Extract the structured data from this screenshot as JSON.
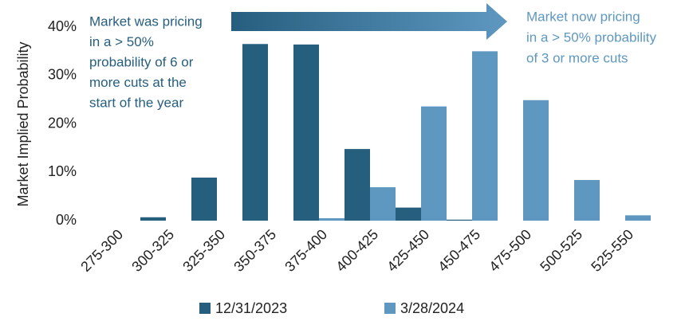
{
  "chart_data": {
    "type": "bar",
    "y_label": "Market Implied Probability",
    "categories": [
      "275-300",
      "300-325",
      "325-350",
      "350-375",
      "375-400",
      "400-425",
      "425-450",
      "450-475",
      "475-500",
      "500-525",
      "525-550"
    ],
    "series": [
      {
        "name": "12/31/2023",
        "color": "#265e7e",
        "values": [
          0,
          0.7,
          8.9,
          36.5,
          36.4,
          14.8,
          2.7,
          0.2,
          0,
          0,
          0
        ]
      },
      {
        "name": "3/28/2024",
        "color": "#5e98c1",
        "values": [
          0,
          0,
          0,
          0,
          0.5,
          6.9,
          23.6,
          35,
          24.9,
          8.4,
          1.1
        ]
      }
    ],
    "ylim": [
      0,
      40
    ],
    "yticks": [
      {
        "value": 0,
        "label": "0%"
      },
      {
        "value": 10,
        "label": "10%"
      },
      {
        "value": 20,
        "label": "20%"
      },
      {
        "value": 30,
        "label": "30%"
      },
      {
        "value": 40,
        "label": "40%"
      }
    ],
    "annotations": [
      {
        "lines": [
          "Market was pricing",
          "in a > 50%",
          "probability of 6 or",
          "more cuts at the",
          "start of the year"
        ],
        "color": "#265e7e"
      },
      {
        "lines": [
          "Market now pricing",
          "in a > 50% probability",
          "of 3 or more cuts"
        ],
        "color": "#5e98c1"
      }
    ],
    "legend": "bottom"
  }
}
